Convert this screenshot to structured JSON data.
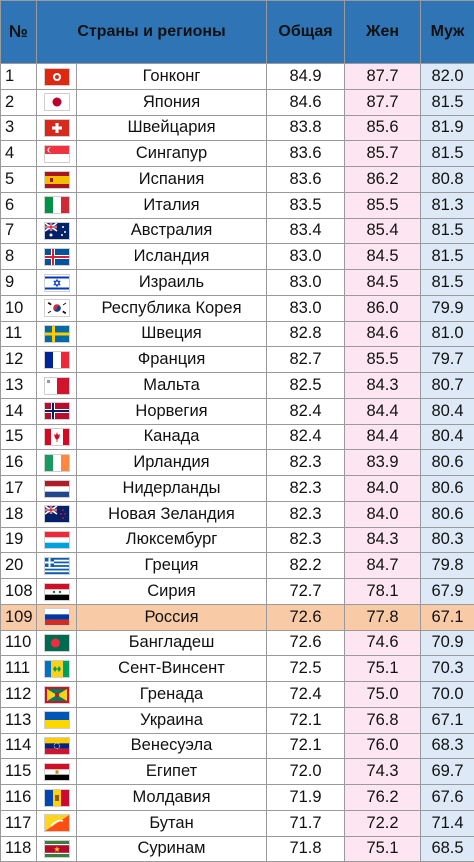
{
  "header": {
    "num": "№",
    "country": "Страны и регионы",
    "total": "Общая",
    "female": "Жен",
    "male": "Муж"
  },
  "rows": [
    {
      "num": "1",
      "country": "Гонконг",
      "total": "84.9",
      "female": "87.7",
      "male": "82.0",
      "flag": "hong-kong-flag"
    },
    {
      "num": "2",
      "country": "Япония",
      "total": "84.6",
      "female": "87.7",
      "male": "81.5",
      "flag": "japan-flag"
    },
    {
      "num": "3",
      "country": "Швейцария",
      "total": "83.8",
      "female": "85.6",
      "male": "81.9",
      "flag": "switzerland-flag"
    },
    {
      "num": "4",
      "country": "Сингапур",
      "total": "83.6",
      "female": "85.7",
      "male": "81.5",
      "flag": "singapore-flag"
    },
    {
      "num": "5",
      "country": "Испания",
      "total": "83.6",
      "female": "86.2",
      "male": "80.8",
      "flag": "spain-flag"
    },
    {
      "num": "6",
      "country": "Италия",
      "total": "83.5",
      "female": "85.5",
      "male": "81.3",
      "flag": "italy-flag"
    },
    {
      "num": "7",
      "country": "Австралия",
      "total": "83.4",
      "female": "85.4",
      "male": "81.5",
      "flag": "australia-flag"
    },
    {
      "num": "8",
      "country": "Исландия",
      "total": "83.0",
      "female": "84.5",
      "male": "81.5",
      "flag": "iceland-flag"
    },
    {
      "num": "9",
      "country": "Израиль",
      "total": "83.0",
      "female": "84.5",
      "male": "81.5",
      "flag": "israel-flag"
    },
    {
      "num": "10",
      "country": "Республика Корея",
      "total": "83.0",
      "female": "86.0",
      "male": "79.9",
      "flag": "south-korea-flag"
    },
    {
      "num": "11",
      "country": "Швеция",
      "total": "82.8",
      "female": "84.6",
      "male": "81.0",
      "flag": "sweden-flag"
    },
    {
      "num": "12",
      "country": "Франция",
      "total": "82.7",
      "female": "85.5",
      "male": "79.7",
      "flag": "france-flag"
    },
    {
      "num": "13",
      "country": "Мальта",
      "total": "82.5",
      "female": "84.3",
      "male": "80.7",
      "flag": "malta-flag"
    },
    {
      "num": "14",
      "country": "Норвегия",
      "total": "82.4",
      "female": "84.4",
      "male": "80.4",
      "flag": "norway-flag"
    },
    {
      "num": "15",
      "country": "Канада",
      "total": "82.4",
      "female": "84.4",
      "male": "80.4",
      "flag": "canada-flag"
    },
    {
      "num": "16",
      "country": "Ирландия",
      "total": "82.3",
      "female": "83.9",
      "male": "80.6",
      "flag": "ireland-flag"
    },
    {
      "num": "17",
      "country": "Нидерланды",
      "total": "82.3",
      "female": "84.0",
      "male": "80.6",
      "flag": "netherlands-flag"
    },
    {
      "num": "18",
      "country": "Новая Зеландия",
      "total": "82.3",
      "female": "84.0",
      "male": "80.6",
      "flag": "new-zealand-flag"
    },
    {
      "num": "19",
      "country": "Люксембург",
      "total": "82.3",
      "female": "84.3",
      "male": "80.3",
      "flag": "luxembourg-flag"
    },
    {
      "num": "20",
      "country": "Греция",
      "total": "82.2",
      "female": "84.7",
      "male": "79.8",
      "flag": "greece-flag"
    },
    {
      "num": "108",
      "country": "Сирия",
      "total": "72.7",
      "female": "78.1",
      "male": "67.9",
      "flag": "syria-flag"
    },
    {
      "num": "109",
      "country": "Россия",
      "total": "72.6",
      "female": "77.8",
      "male": "67.1",
      "flag": "russia-flag",
      "highlight": true
    },
    {
      "num": "110",
      "country": "Бангладеш",
      "total": "72.6",
      "female": "74.6",
      "male": "70.9",
      "flag": "bangladesh-flag"
    },
    {
      "num": "111",
      "country": "Сент-Винсент",
      "total": "72.5",
      "female": "75.1",
      "male": "70.3",
      "flag": "saint-vincent-flag"
    },
    {
      "num": "112",
      "country": "Гренада",
      "total": "72.4",
      "female": "75.0",
      "male": "70.0",
      "flag": "grenada-flag"
    },
    {
      "num": "113",
      "country": "Украина",
      "total": "72.1",
      "female": "76.8",
      "male": "67.1",
      "flag": "ukraine-flag"
    },
    {
      "num": "114",
      "country": "Венесуэла",
      "total": "72.1",
      "female": "76.0",
      "male": "68.3",
      "flag": "venezuela-flag"
    },
    {
      "num": "115",
      "country": "Египет",
      "total": "72.0",
      "female": "74.3",
      "male": "69.7",
      "flag": "egypt-flag"
    },
    {
      "num": "116",
      "country": "Молдавия",
      "total": "71.9",
      "female": "76.2",
      "male": "67.6",
      "flag": "moldova-flag"
    },
    {
      "num": "117",
      "country": "Бутан",
      "total": "71.7",
      "female": "72.2",
      "male": "71.4",
      "flag": "bhutan-flag"
    },
    {
      "num": "118",
      "country": "Суринам",
      "total": "71.8",
      "female": "75.1",
      "male": "68.5",
      "flag": "suriname-flag"
    }
  ]
}
